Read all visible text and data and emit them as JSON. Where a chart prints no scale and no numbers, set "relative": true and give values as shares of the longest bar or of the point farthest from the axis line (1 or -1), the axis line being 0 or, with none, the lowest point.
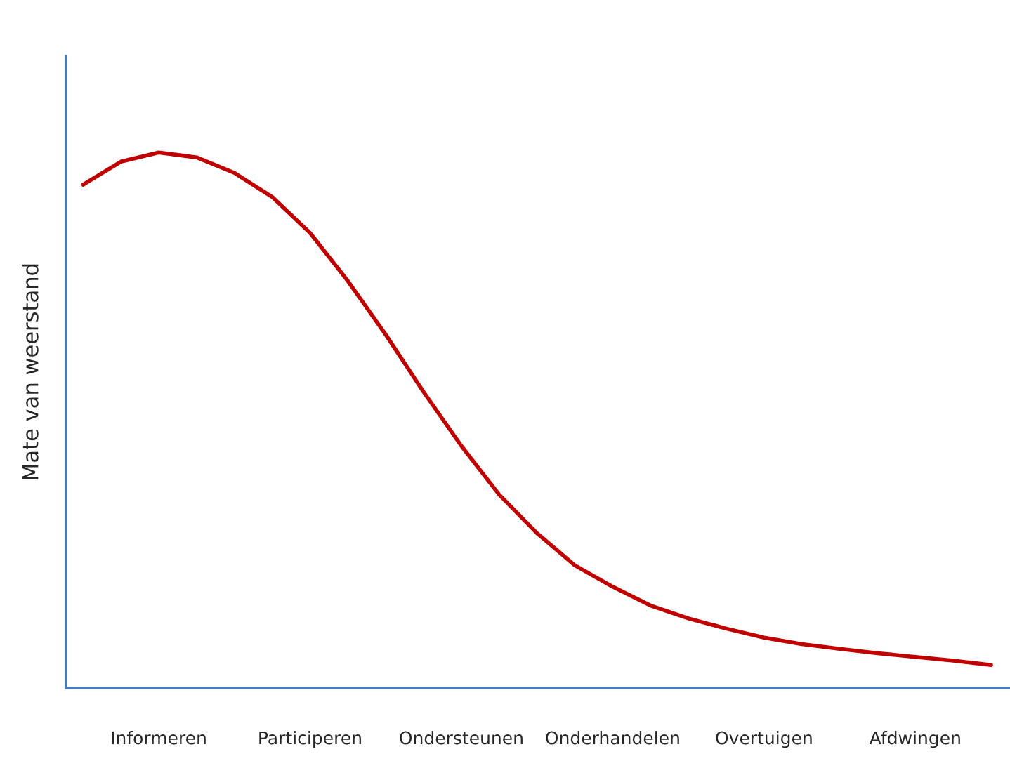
{
  "chart_data": {
    "type": "line",
    "relative": true,
    "ylabel": "Mate van weerstand",
    "categories": [
      null,
      null,
      "Informeren",
      null,
      null,
      null,
      "Participeren",
      null,
      null,
      null,
      "Ondersteunen",
      null,
      null,
      null,
      "Onderhandelen",
      null,
      null,
      null,
      "Overtuigen",
      null,
      null,
      null,
      "Afdwingen",
      null,
      null
    ],
    "series": [
      {
        "color": "#c00000",
        "values": [
          0.94,
          0.983,
          1.0,
          0.991,
          0.962,
          0.917,
          0.85,
          0.76,
          0.66,
          0.553,
          0.452,
          0.361,
          0.289,
          0.229,
          0.189,
          0.154,
          0.13,
          0.111,
          0.094,
          0.082,
          0.073,
          0.065,
          0.058,
          0.051,
          0.043
        ]
      }
    ],
    "grid": false,
    "legend": false,
    "marker": "none",
    "line_style": "solid"
  }
}
